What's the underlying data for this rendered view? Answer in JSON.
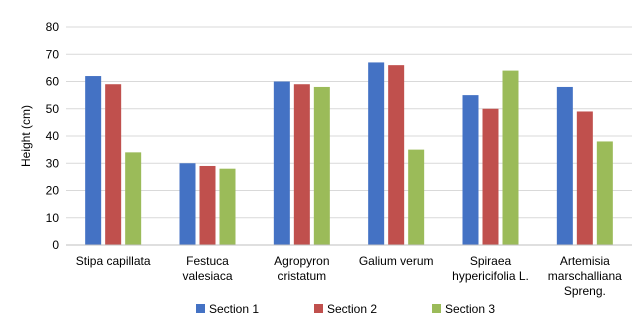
{
  "chart_data": {
    "type": "bar",
    "title": "",
    "xlabel": "",
    "ylabel": "Height (cm)",
    "ylim": [
      0,
      80
    ],
    "ytick_step": 10,
    "grid": true,
    "legend_position": "bottom",
    "categories": [
      [
        "Stipa capillata"
      ],
      [
        "Festuca",
        "valesiaca"
      ],
      [
        "Agropyron",
        "cristatum"
      ],
      [
        "Galium verum"
      ],
      [
        "Spiraea",
        "hypericifolia L."
      ],
      [
        "Artemisia",
        "marschalliana",
        "Spreng."
      ]
    ],
    "series": [
      {
        "name": "Section 1",
        "color": "#4472C4",
        "values": [
          62,
          30,
          60,
          67,
          55,
          58
        ]
      },
      {
        "name": "Section 2",
        "color": "#C0504D",
        "values": [
          59,
          29,
          59,
          66,
          50,
          49
        ]
      },
      {
        "name": "Section 3",
        "color": "#9BBB59",
        "values": [
          34,
          28,
          58,
          35,
          64,
          38
        ]
      }
    ]
  }
}
